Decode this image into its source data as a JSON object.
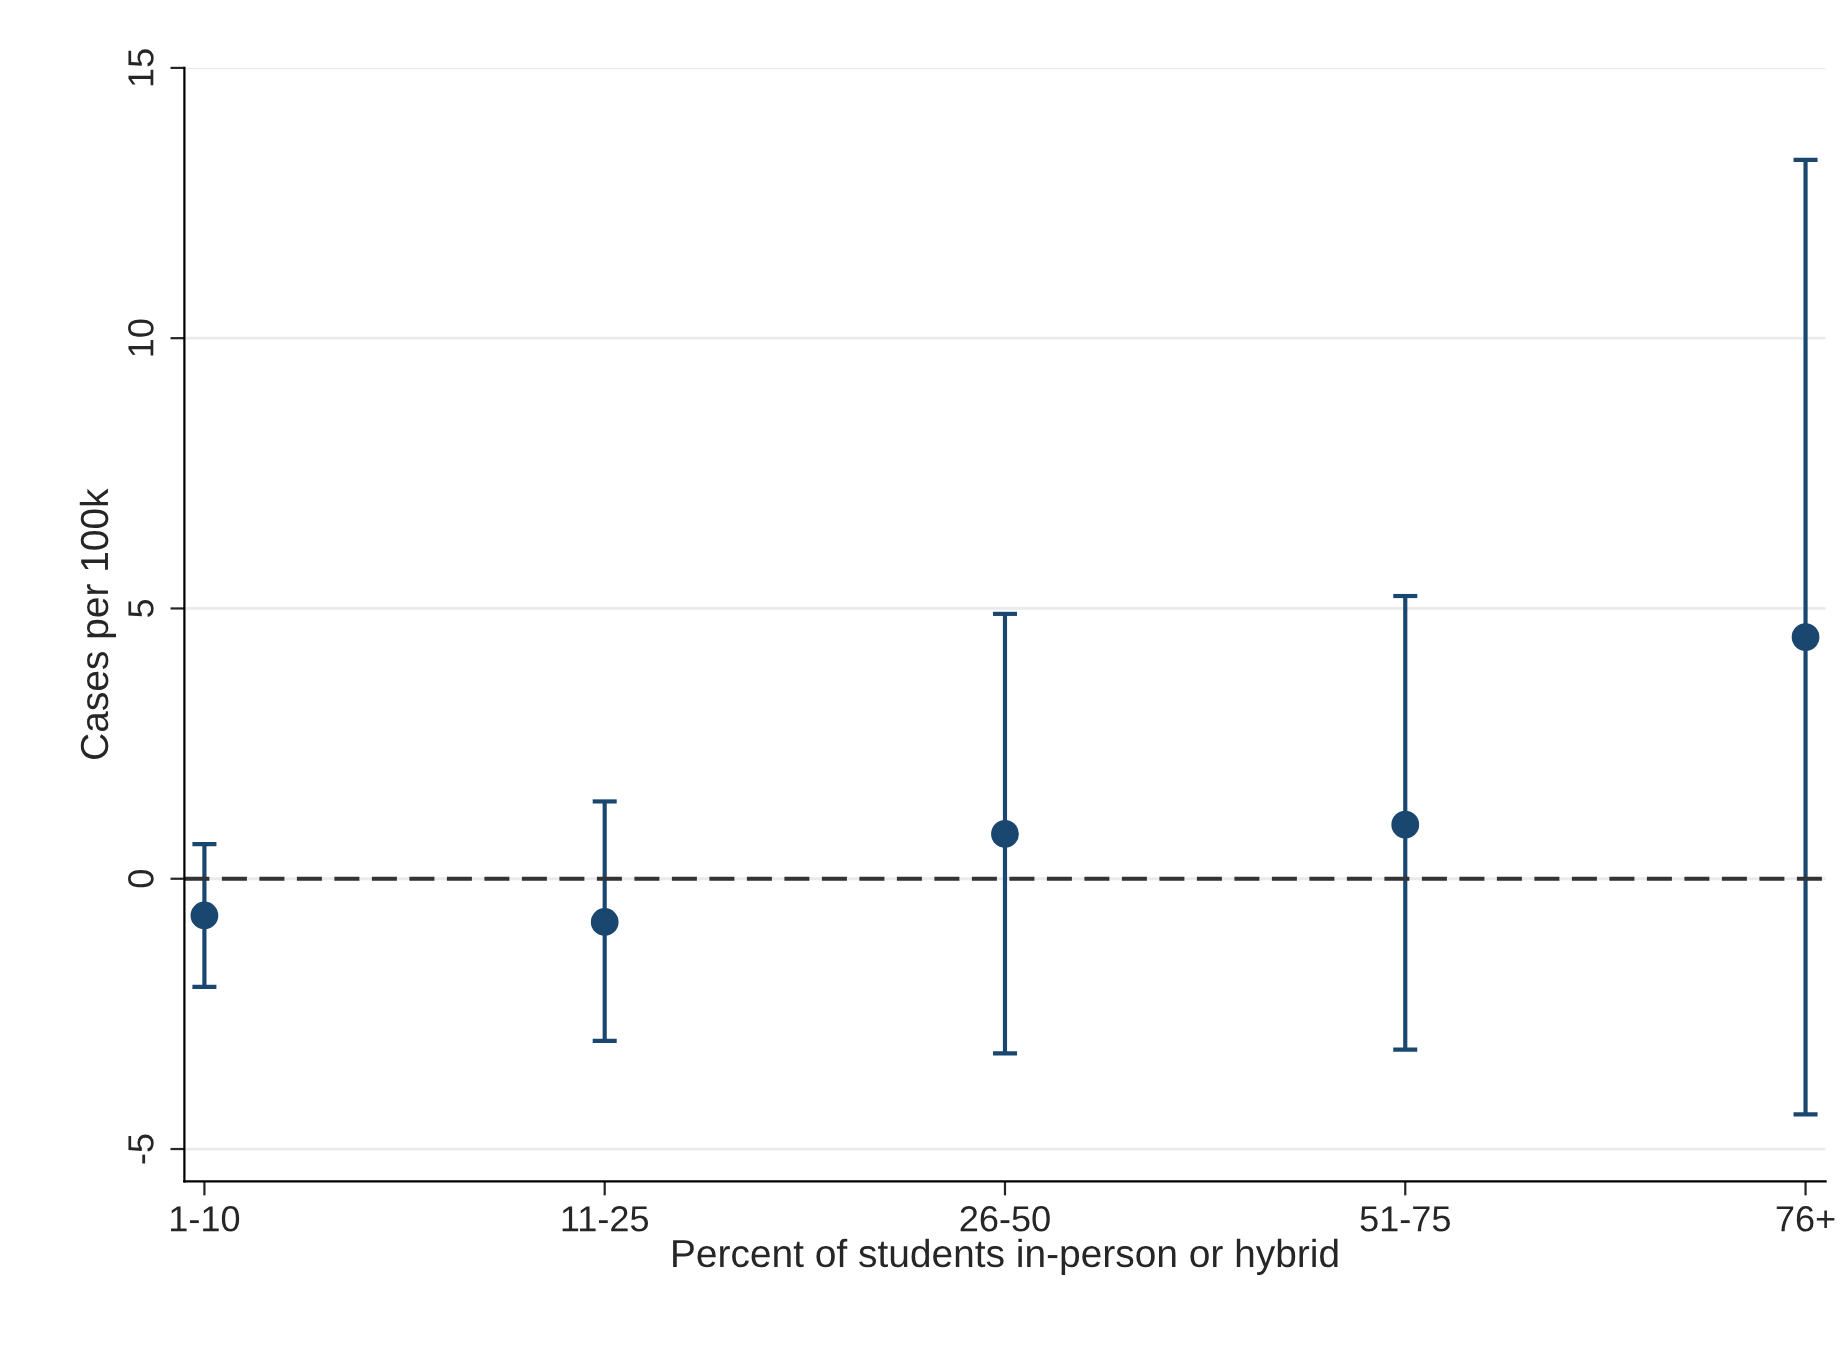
{
  "chart_data": {
    "type": "scatter",
    "xlabel": "Percent of students in-person or hybrid",
    "ylabel": "Cases per 100k",
    "categories": [
      "1-10",
      "11-25",
      "26-50",
      "51-75",
      "76+"
    ],
    "series": [
      {
        "color": "#1a476f",
        "values": [
          -0.68,
          -0.8,
          0.83,
          1.0,
          4.47
        ],
        "errors": [
          [
            -2.0,
            0.64
          ],
          [
            -3.0,
            1.43
          ],
          [
            -3.23,
            4.9
          ],
          [
            -3.16,
            5.23
          ],
          [
            -4.36,
            13.3
          ]
        ]
      }
    ],
    "ylim": [
      -5.6,
      15
    ],
    "yticks": [
      -5,
      0,
      5,
      10,
      15
    ],
    "grid": "y",
    "marker": "circle",
    "ref_lines": [
      {
        "axis": "y",
        "value": 0,
        "color": "#333333",
        "line_style": "dashed"
      }
    ]
  }
}
